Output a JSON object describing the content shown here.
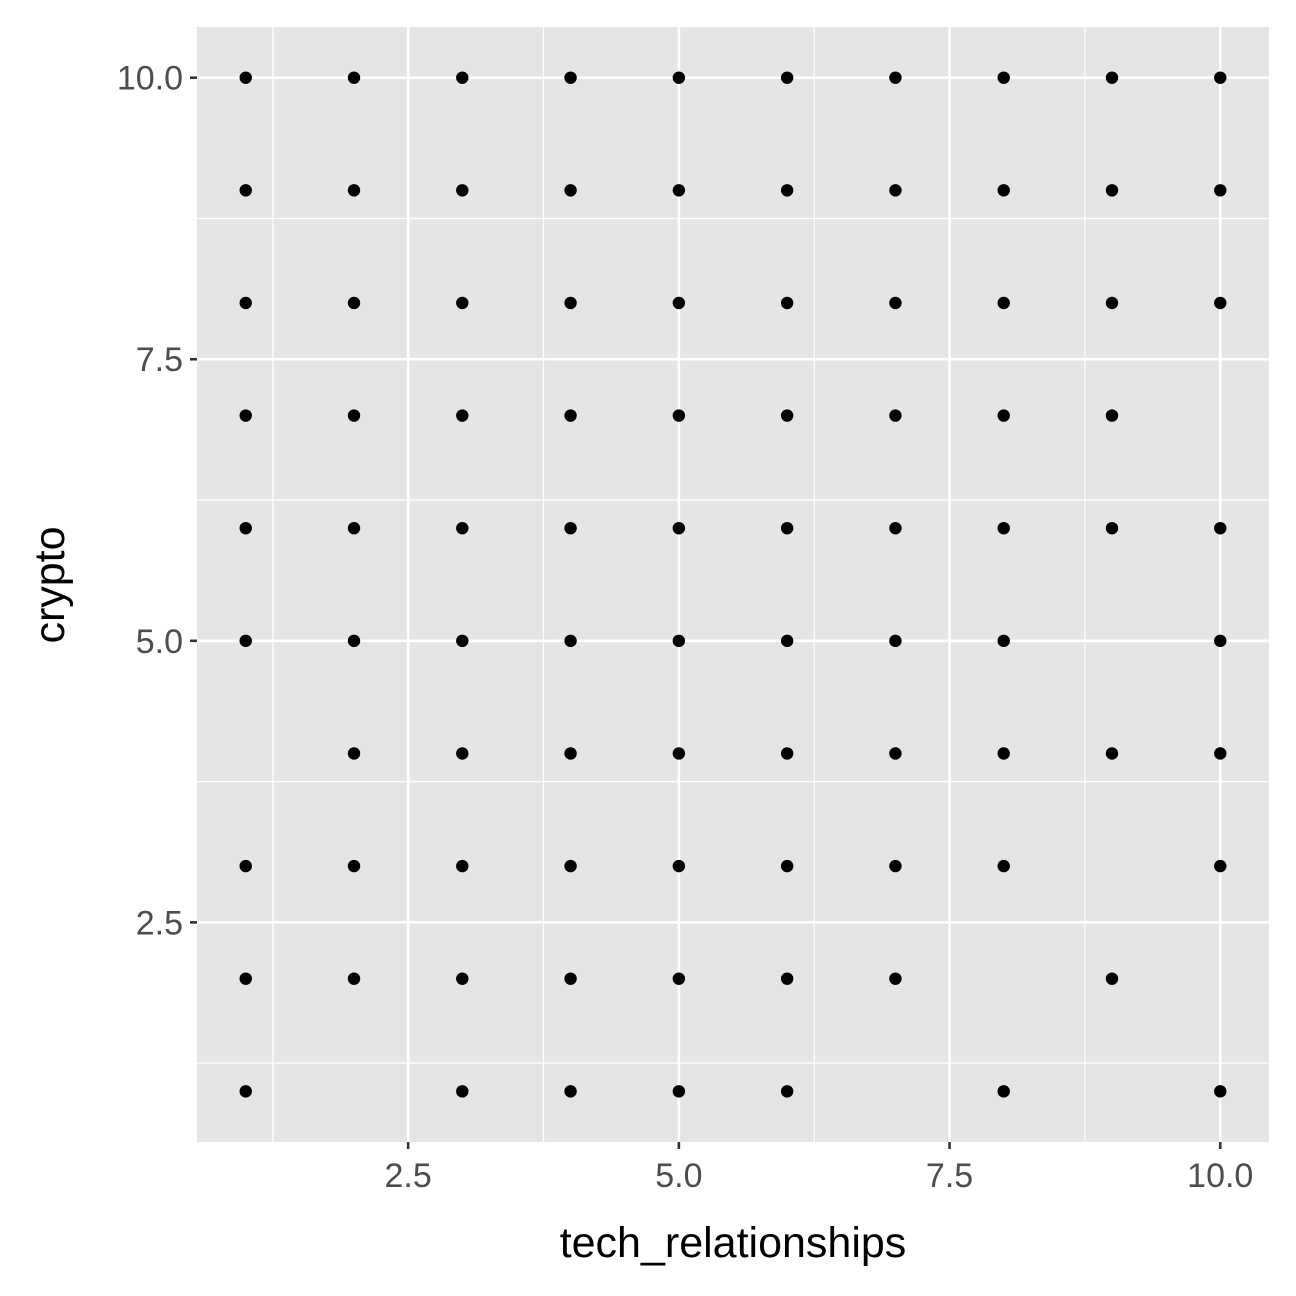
{
  "chart_data": {
    "type": "scatter",
    "title": "",
    "xlabel": "tech_relationships",
    "ylabel": "crypto",
    "xlim": [
      0.55,
      10.45
    ],
    "ylim": [
      0.55,
      10.45
    ],
    "x_ticks": [
      2.5,
      5.0,
      7.5,
      10.0
    ],
    "x_tick_labels": [
      "2.5",
      "5.0",
      "7.5",
      "10.0"
    ],
    "y_ticks": [
      2.5,
      5.0,
      7.5,
      10.0
    ],
    "y_tick_labels": [
      "2.5",
      "5.0",
      "7.5",
      "10.0"
    ],
    "grid": true,
    "legend": "none",
    "colors": {
      "panel": "#e5e5e5",
      "grid": "#ffffff",
      "point": "#000000",
      "tick_text": "#4d4d4d"
    },
    "points": [
      {
        "x": 1,
        "y": 10
      },
      {
        "x": 2,
        "y": 10
      },
      {
        "x": 3,
        "y": 10
      },
      {
        "x": 4,
        "y": 10
      },
      {
        "x": 5,
        "y": 10
      },
      {
        "x": 6,
        "y": 10
      },
      {
        "x": 7,
        "y": 10
      },
      {
        "x": 8,
        "y": 10
      },
      {
        "x": 9,
        "y": 10
      },
      {
        "x": 10,
        "y": 10
      },
      {
        "x": 1,
        "y": 9
      },
      {
        "x": 2,
        "y": 9
      },
      {
        "x": 3,
        "y": 9
      },
      {
        "x": 4,
        "y": 9
      },
      {
        "x": 5,
        "y": 9
      },
      {
        "x": 6,
        "y": 9
      },
      {
        "x": 7,
        "y": 9
      },
      {
        "x": 8,
        "y": 9
      },
      {
        "x": 9,
        "y": 9
      },
      {
        "x": 10,
        "y": 9
      },
      {
        "x": 1,
        "y": 8
      },
      {
        "x": 2,
        "y": 8
      },
      {
        "x": 3,
        "y": 8
      },
      {
        "x": 4,
        "y": 8
      },
      {
        "x": 5,
        "y": 8
      },
      {
        "x": 6,
        "y": 8
      },
      {
        "x": 7,
        "y": 8
      },
      {
        "x": 8,
        "y": 8
      },
      {
        "x": 9,
        "y": 8
      },
      {
        "x": 10,
        "y": 8
      },
      {
        "x": 1,
        "y": 7
      },
      {
        "x": 2,
        "y": 7
      },
      {
        "x": 3,
        "y": 7
      },
      {
        "x": 4,
        "y": 7
      },
      {
        "x": 5,
        "y": 7
      },
      {
        "x": 6,
        "y": 7
      },
      {
        "x": 7,
        "y": 7
      },
      {
        "x": 8,
        "y": 7
      },
      {
        "x": 9,
        "y": 7
      },
      {
        "x": 1,
        "y": 6
      },
      {
        "x": 2,
        "y": 6
      },
      {
        "x": 3,
        "y": 6
      },
      {
        "x": 4,
        "y": 6
      },
      {
        "x": 5,
        "y": 6
      },
      {
        "x": 6,
        "y": 6
      },
      {
        "x": 7,
        "y": 6
      },
      {
        "x": 8,
        "y": 6
      },
      {
        "x": 9,
        "y": 6
      },
      {
        "x": 10,
        "y": 6
      },
      {
        "x": 1,
        "y": 5
      },
      {
        "x": 2,
        "y": 5
      },
      {
        "x": 3,
        "y": 5
      },
      {
        "x": 4,
        "y": 5
      },
      {
        "x": 5,
        "y": 5
      },
      {
        "x": 6,
        "y": 5
      },
      {
        "x": 7,
        "y": 5
      },
      {
        "x": 8,
        "y": 5
      },
      {
        "x": 10,
        "y": 5
      },
      {
        "x": 2,
        "y": 4
      },
      {
        "x": 3,
        "y": 4
      },
      {
        "x": 4,
        "y": 4
      },
      {
        "x": 5,
        "y": 4
      },
      {
        "x": 6,
        "y": 4
      },
      {
        "x": 7,
        "y": 4
      },
      {
        "x": 8,
        "y": 4
      },
      {
        "x": 9,
        "y": 4
      },
      {
        "x": 10,
        "y": 4
      },
      {
        "x": 1,
        "y": 3
      },
      {
        "x": 2,
        "y": 3
      },
      {
        "x": 3,
        "y": 3
      },
      {
        "x": 4,
        "y": 3
      },
      {
        "x": 5,
        "y": 3
      },
      {
        "x": 6,
        "y": 3
      },
      {
        "x": 7,
        "y": 3
      },
      {
        "x": 8,
        "y": 3
      },
      {
        "x": 10,
        "y": 3
      },
      {
        "x": 1,
        "y": 2
      },
      {
        "x": 2,
        "y": 2
      },
      {
        "x": 3,
        "y": 2
      },
      {
        "x": 4,
        "y": 2
      },
      {
        "x": 5,
        "y": 2
      },
      {
        "x": 6,
        "y": 2
      },
      {
        "x": 7,
        "y": 2
      },
      {
        "x": 9,
        "y": 2
      },
      {
        "x": 1,
        "y": 1
      },
      {
        "x": 3,
        "y": 1
      },
      {
        "x": 4,
        "y": 1
      },
      {
        "x": 5,
        "y": 1
      },
      {
        "x": 6,
        "y": 1
      },
      {
        "x": 8,
        "y": 1
      },
      {
        "x": 10,
        "y": 1
      }
    ]
  }
}
